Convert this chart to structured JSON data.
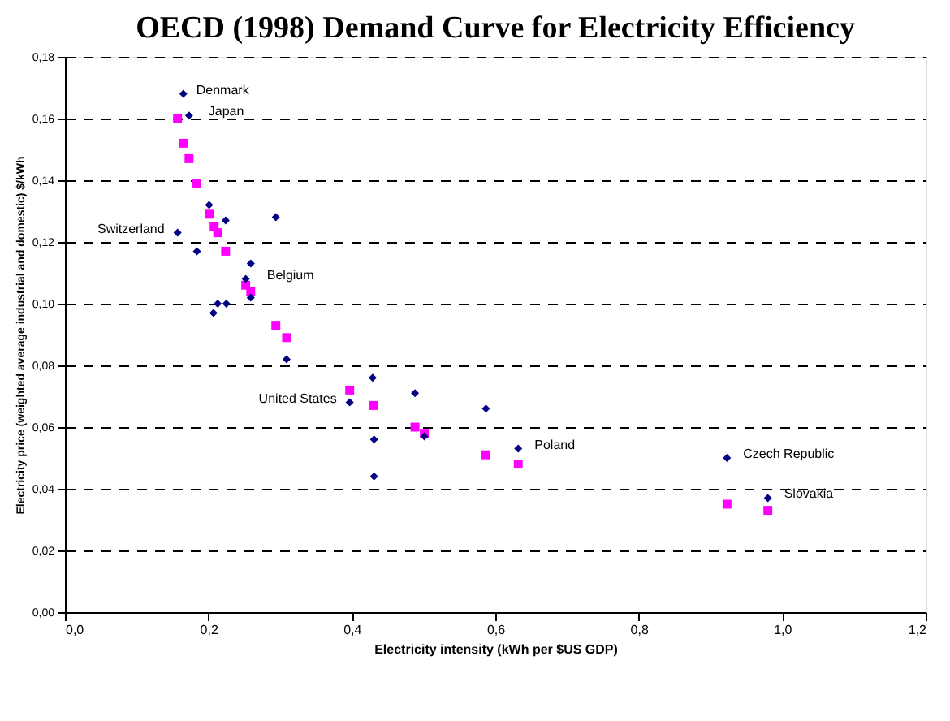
{
  "chart_data": {
    "type": "scatter",
    "title": "OECD (1998) Demand Curve for Electricity Efficiency",
    "xlabel": "Electricity intensity (kWh per $US GDP)",
    "ylabel": "Electricity price (weighted average industrial and domestic) $/kWh",
    "xlim": [
      0,
      1.2
    ],
    "xticks": [
      {
        "value": 0,
        "label": "0,0"
      },
      {
        "value": 0.2,
        "label": "0,2"
      },
      {
        "value": 0.4,
        "label": "0,4"
      },
      {
        "value": 0.6,
        "label": "0,6"
      },
      {
        "value": 0.8,
        "label": "0,8"
      },
      {
        "value": 1.0,
        "label": "1,0"
      },
      {
        "value": 1.2,
        "label": "1,2"
      }
    ],
    "ylim": [
      0,
      0.18
    ],
    "yticks": [
      {
        "value": 0,
        "label": "0,00"
      },
      {
        "value": 0.02,
        "label": "0,02"
      },
      {
        "value": 0.04,
        "label": "0,04"
      },
      {
        "value": 0.06,
        "label": "0,06"
      },
      {
        "value": 0.08,
        "label": "0,08"
      },
      {
        "value": 0.1,
        "label": "0,10"
      },
      {
        "value": 0.12,
        "label": "0,12"
      },
      {
        "value": 0.14,
        "label": "0,14"
      },
      {
        "value": 0.16,
        "label": "0,16"
      },
      {
        "value": 0.18,
        "label": "0,18"
      }
    ],
    "grid": "y",
    "series": [
      {
        "color": "#000080",
        "marker": "diamond",
        "x": [
          0.165,
          0.173,
          0.157,
          0.184,
          0.201,
          0.224,
          0.294,
          0.259,
          0.252,
          0.259,
          0.207,
          0.213,
          0.225,
          0.309,
          0.429,
          0.397,
          0.488,
          0.587,
          0.431,
          0.501,
          0.431,
          0.632,
          0.923,
          0.98
        ],
        "values": [
          0.168,
          0.161,
          0.123,
          0.117,
          0.132,
          0.127,
          0.128,
          0.113,
          0.108,
          0.102,
          0.097,
          0.1,
          0.1,
          0.082,
          0.076,
          0.068,
          0.071,
          0.066,
          0.056,
          0.057,
          0.044,
          0.053,
          0.05,
          0.037
        ]
      },
      {
        "color": "#ff00ff",
        "marker": "square",
        "x": [
          0.157,
          0.165,
          0.173,
          0.184,
          0.201,
          0.208,
          0.213,
          0.224,
          0.252,
          0.259,
          0.294,
          0.309,
          0.397,
          0.43,
          0.488,
          0.501,
          0.587,
          0.632,
          0.923,
          0.98
        ],
        "values": [
          0.16,
          0.152,
          0.147,
          0.139,
          0.129,
          0.125,
          0.123,
          0.117,
          0.106,
          0.104,
          0.093,
          0.089,
          0.072,
          0.067,
          0.06,
          0.058,
          0.051,
          0.048,
          0.035,
          0.033
        ]
      }
    ],
    "annotations": [
      {
        "text": "Denmark",
        "x": 0.165,
        "y": 0.168
      },
      {
        "text": "Japan",
        "x": 0.173,
        "y": 0.161
      },
      {
        "text": "Switzerland",
        "x": 0.157,
        "y": 0.123
      },
      {
        "text": "Belgium",
        "x": 0.259,
        "y": 0.108
      },
      {
        "text": "United States",
        "x": 0.397,
        "y": 0.068
      },
      {
        "text": "Poland",
        "x": 0.632,
        "y": 0.053
      },
      {
        "text": "Czech Republic",
        "x": 0.923,
        "y": 0.05
      },
      {
        "text": "Slovakia",
        "x": 0.98,
        "y": 0.037
      }
    ]
  }
}
